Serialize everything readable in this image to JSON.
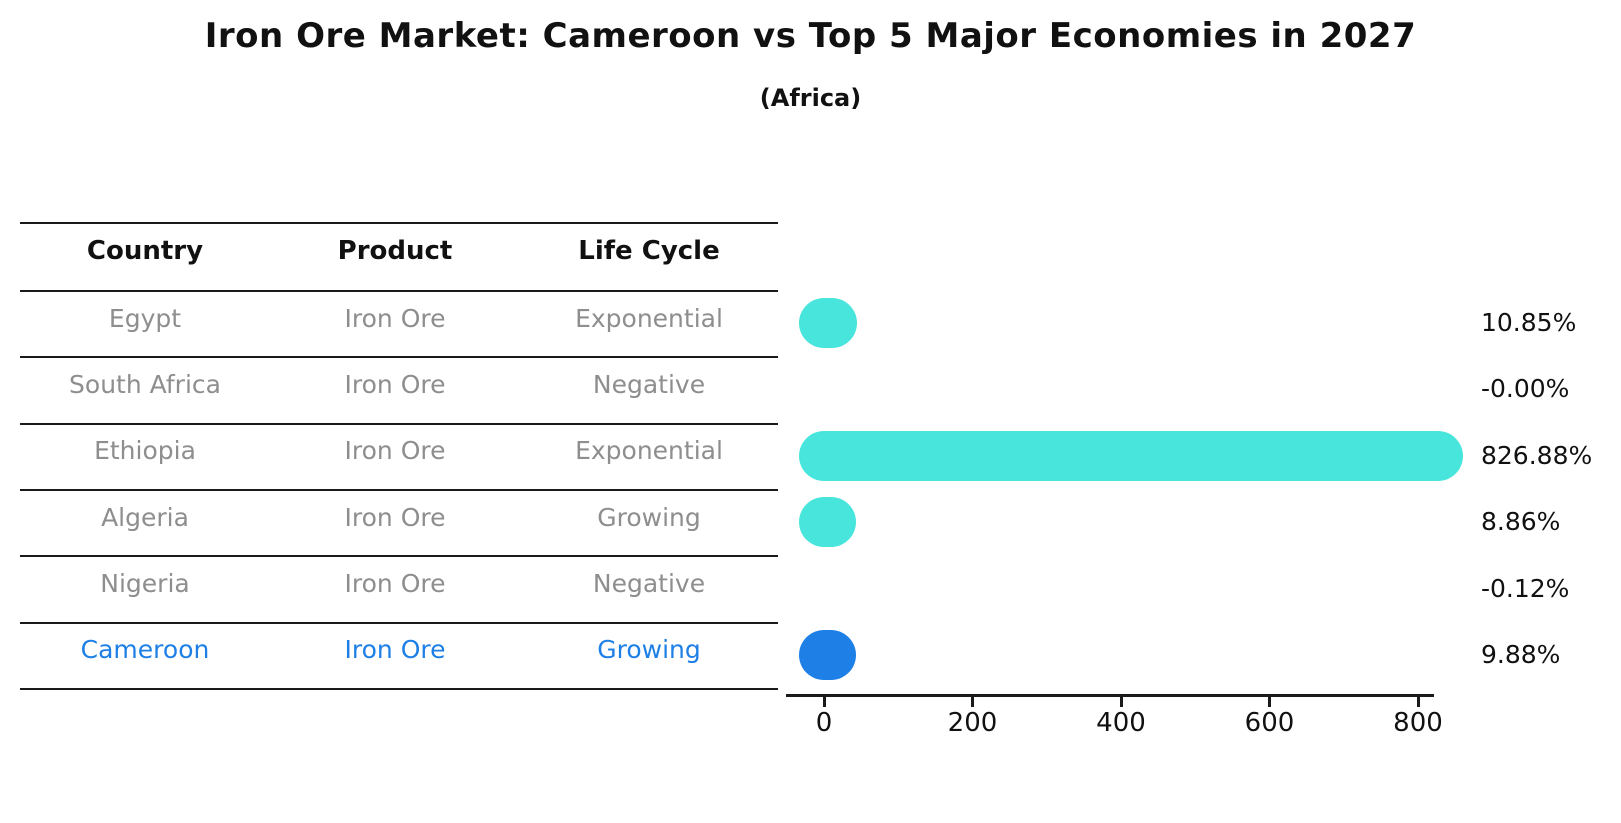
{
  "title": "Iron Ore Market: Cameroon vs Top 5 Major Economies in 2027",
  "subtitle": "(Africa)",
  "table": {
    "headers": [
      "Country",
      "Product",
      "Life Cycle"
    ],
    "rows": [
      {
        "country": "Egypt",
        "product": "Iron Ore",
        "life_cycle": "Exponential",
        "highlight": false
      },
      {
        "country": "South Africa",
        "product": "Iron Ore",
        "life_cycle": "Negative",
        "highlight": false
      },
      {
        "country": "Ethiopia",
        "product": "Iron Ore",
        "life_cycle": "Exponential",
        "highlight": false
      },
      {
        "country": "Algeria",
        "product": "Iron Ore",
        "life_cycle": "Growing",
        "highlight": false
      },
      {
        "country": "Nigeria",
        "product": "Iron Ore",
        "life_cycle": "Negative",
        "highlight": false
      },
      {
        "country": "Cameroon",
        "product": "Iron Ore",
        "life_cycle": "Growing",
        "highlight": true
      }
    ]
  },
  "chart_data": {
    "type": "bar",
    "orientation": "horizontal",
    "title": "Iron Ore Market: Cameroon vs Top 5 Major Economies in 2027 (Africa)",
    "categories": [
      "Egypt",
      "South Africa",
      "Ethiopia",
      "Algeria",
      "Nigeria",
      "Cameroon"
    ],
    "values": [
      10.85,
      -0.0,
      826.88,
      8.86,
      -0.12,
      9.88
    ],
    "value_labels": [
      "10.85%",
      "-0.00%",
      "826.88%",
      "8.86%",
      "-0.12%",
      "9.88%"
    ],
    "xlabel": "",
    "ylabel": "",
    "x_ticks": [
      0,
      200,
      400,
      600,
      800
    ],
    "xlim": [
      0,
      860
    ],
    "grid": false,
    "legend": "none",
    "bar_color": "#48e5dc",
    "highlight_color": "#1e80e6",
    "highlight_index": 5
  },
  "colors": {
    "bar_cyan": "#48e5dc",
    "accent_blue": "#1e80e6",
    "text_gray": "#8e8e8e",
    "text_black": "#111111",
    "line": "#1a1a1a"
  }
}
